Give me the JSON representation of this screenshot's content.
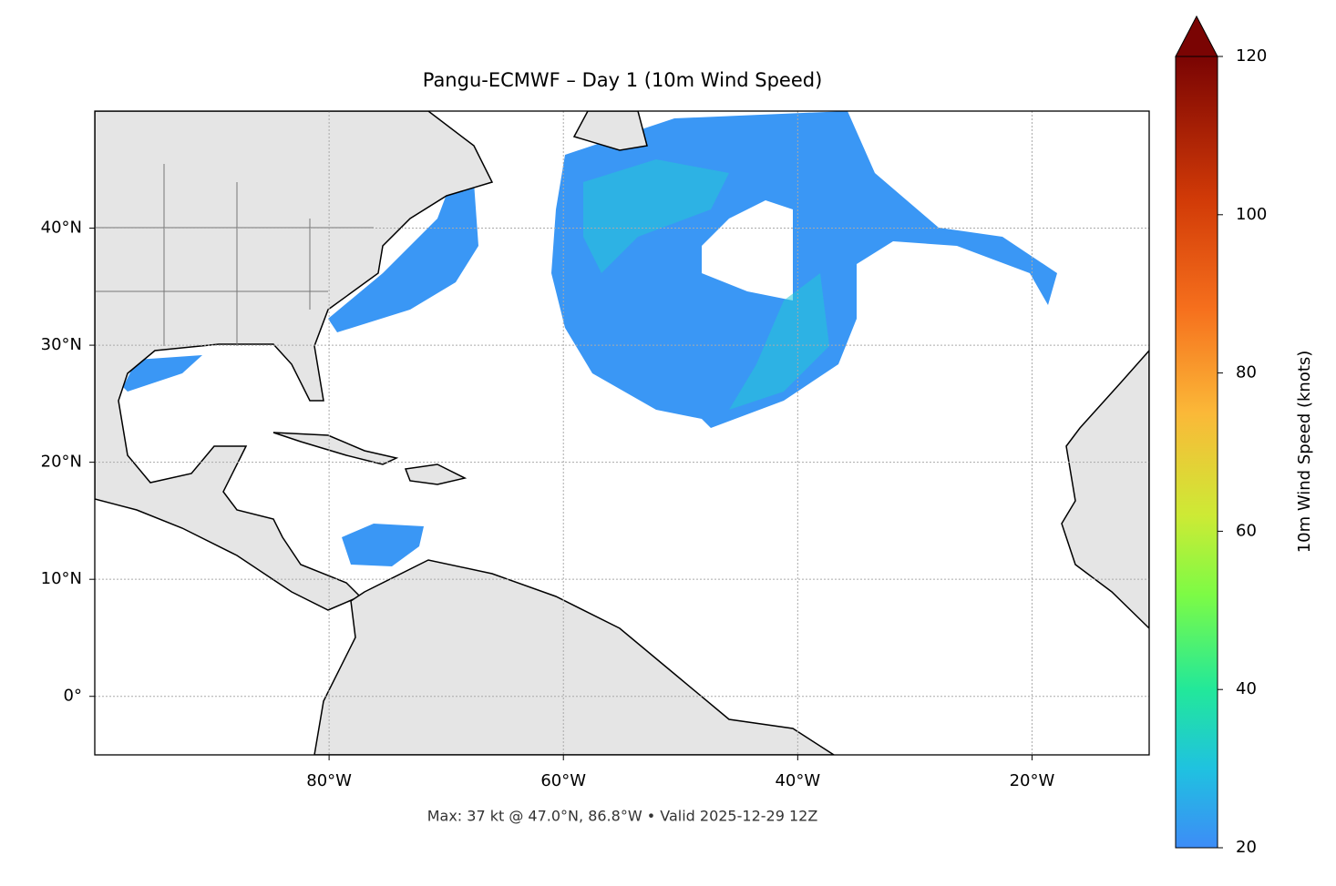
{
  "map": {
    "title": "Pangu-ECMWF – Day 1 (10m Wind Speed)",
    "footer": "Max: 37 kt @ 47.0°N, 86.8°W • Valid 2025-12-29 12Z",
    "xlim": [
      -100,
      -10
    ],
    "ylim": [
      -5,
      50
    ],
    "xticks": [
      {
        "value": -80,
        "label": "80°W"
      },
      {
        "value": -60,
        "label": "60°W"
      },
      {
        "value": -40,
        "label": "40°W"
      },
      {
        "value": -20,
        "label": "20°W"
      }
    ],
    "yticks": [
      {
        "value": 0,
        "label": "0°"
      },
      {
        "value": 10,
        "label": "10°N"
      },
      {
        "value": 20,
        "label": "20°N"
      },
      {
        "value": 30,
        "label": "30°N"
      },
      {
        "value": 40,
        "label": "40°N"
      }
    ],
    "colorbar": {
      "label": "10m Wind Speed (knots)",
      "lim": [
        20,
        120
      ],
      "ticks": [
        20,
        40,
        60,
        80,
        100,
        120
      ]
    }
  }
}
